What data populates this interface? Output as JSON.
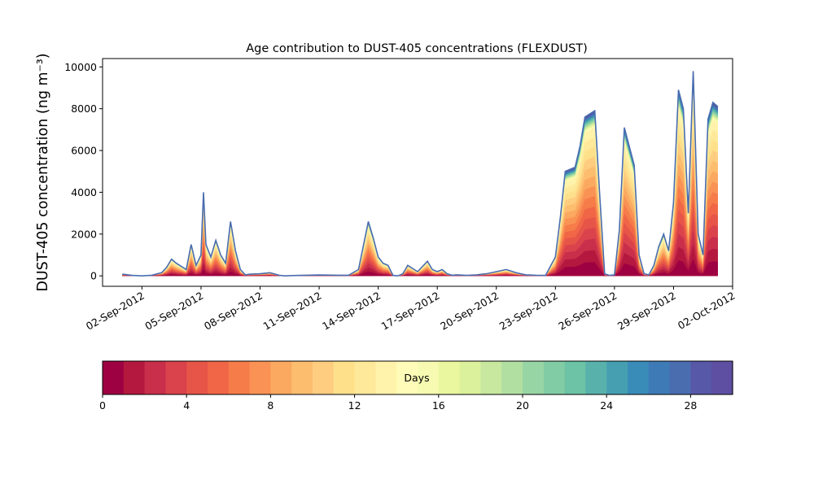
{
  "chart_data": {
    "type": "area",
    "title": "Age contribution to DUST-405 concentrations (FLEXDUST)",
    "ylabel": "DUST-405 concentration (ng m⁻³)",
    "xlabel": "",
    "x_range": [
      "2012-08-31",
      "2012-10-02"
    ],
    "ylim": [
      -500,
      10400
    ],
    "y_ticks": [
      0,
      2000,
      4000,
      6000,
      8000,
      10000
    ],
    "x_ticks": [
      "2012-09-02",
      "2012-09-05",
      "2012-09-08",
      "2012-09-11",
      "2012-09-14",
      "2012-09-17",
      "2012-09-20",
      "2012-09-23",
      "2012-09-26",
      "2012-09-29",
      "2012-10-02"
    ],
    "x_tick_labels": [
      "02-Sep-2012",
      "05-Sep-2012",
      "08-Sep-2012",
      "11-Sep-2012",
      "14-Sep-2012",
      "17-Sep-2012",
      "20-Sep-2012",
      "23-Sep-2012",
      "26-Sep-2012",
      "29-Sep-2012",
      "02-Oct-2012"
    ],
    "grid": false,
    "series_note": "stacked by particle age, 0-30 days",
    "total": {
      "x": [
        "2012-09-01T00",
        "2012-09-01T12",
        "2012-09-02T00",
        "2012-09-02T12",
        "2012-09-03T00",
        "2012-09-03T06",
        "2012-09-03T12",
        "2012-09-03T18",
        "2012-09-04T00",
        "2012-09-04T06",
        "2012-09-04T12",
        "2012-09-04T18",
        "2012-09-05T00",
        "2012-09-05T03",
        "2012-09-05T06",
        "2012-09-05T12",
        "2012-09-05T18",
        "2012-09-06T00",
        "2012-09-06T06",
        "2012-09-06T12",
        "2012-09-06T18",
        "2012-09-07T00",
        "2012-09-07T06",
        "2012-09-07T12",
        "2012-09-08T00",
        "2012-09-08T12",
        "2012-09-09T00",
        "2012-09-09T06",
        "2012-09-09T12",
        "2012-09-10T00",
        "2012-09-11T00",
        "2012-09-12T00",
        "2012-09-12T12",
        "2012-09-13T00",
        "2012-09-13T12",
        "2012-09-13T18",
        "2012-09-14T00",
        "2012-09-14T06",
        "2012-09-14T12",
        "2012-09-14T18",
        "2012-09-15T00",
        "2012-09-15T06",
        "2012-09-15T12",
        "2012-09-16T00",
        "2012-09-16T12",
        "2012-09-16T18",
        "2012-09-17T00",
        "2012-09-17T06",
        "2012-09-17T12",
        "2012-09-17T18",
        "2012-09-18T00",
        "2012-09-18T12",
        "2012-09-19T00",
        "2012-09-19T12",
        "2012-09-20T00",
        "2012-09-20T12",
        "2012-09-21T00",
        "2012-09-21T12",
        "2012-09-22T00",
        "2012-09-22T12",
        "2012-09-23T00",
        "2012-09-23T06",
        "2012-09-23T12",
        "2012-09-24T00",
        "2012-09-24T06",
        "2012-09-24T12",
        "2012-09-25T00",
        "2012-09-25T06",
        "2012-09-25T12",
        "2012-09-25T18",
        "2012-09-26T00",
        "2012-09-26T06",
        "2012-09-26T12",
        "2012-09-27T00",
        "2012-09-27T06",
        "2012-09-27T12",
        "2012-09-27T18",
        "2012-09-28T00",
        "2012-09-28T06",
        "2012-09-28T12",
        "2012-09-28T18",
        "2012-09-29T00",
        "2012-09-29T06",
        "2012-09-29T12",
        "2012-09-29T18",
        "2012-09-30T00",
        "2012-09-30T06",
        "2012-09-30T12",
        "2012-09-30T18",
        "2012-10-01T00",
        "2012-10-01T06"
      ],
      "y": [
        80,
        20,
        0,
        30,
        150,
        400,
        800,
        600,
        450,
        300,
        1500,
        500,
        1000,
        4000,
        1500,
        900,
        1700,
        1000,
        600,
        2600,
        1200,
        300,
        50,
        80,
        100,
        150,
        20,
        0,
        10,
        20,
        40,
        30,
        30,
        300,
        2600,
        1800,
        900,
        600,
        500,
        20,
        0,
        100,
        500,
        200,
        700,
        300,
        200,
        300,
        100,
        30,
        50,
        20,
        50,
        100,
        200,
        300,
        150,
        50,
        30,
        20,
        900,
        2800,
        5000,
        5200,
        6200,
        7600,
        7900,
        3900,
        100,
        20,
        50,
        2200,
        7100,
        5300,
        1000,
        100,
        50,
        500,
        1400,
        2000,
        1200,
        3500,
        8900,
        8000,
        3000,
        9800,
        2000,
        1000,
        7500,
        8300,
        8100
      ]
    },
    "colorbar": {
      "label": "Days",
      "min": 0,
      "max": 30,
      "ticks": [
        0,
        4,
        8,
        12,
        16,
        20,
        24,
        28
      ],
      "colors": [
        "#9e0142",
        "#b4183f",
        "#c92e4b",
        "#da424c",
        "#e65548",
        "#f06647",
        "#f67c4a",
        "#f99254",
        "#fba960",
        "#fdbd6e",
        "#fecd80",
        "#fee08b",
        "#fee99a",
        "#fff2aa",
        "#fffbb8",
        "#f6fbb1",
        "#eaf79f",
        "#dbf19b",
        "#c7e89e",
        "#b1dfa2",
        "#98d5a4",
        "#82cca5",
        "#6cc3a5",
        "#58b2ab",
        "#459fb1",
        "#3a8cb8",
        "#3e7bb6",
        "#4a6db0",
        "#5758a8",
        "#5e4fa2"
      ]
    }
  }
}
